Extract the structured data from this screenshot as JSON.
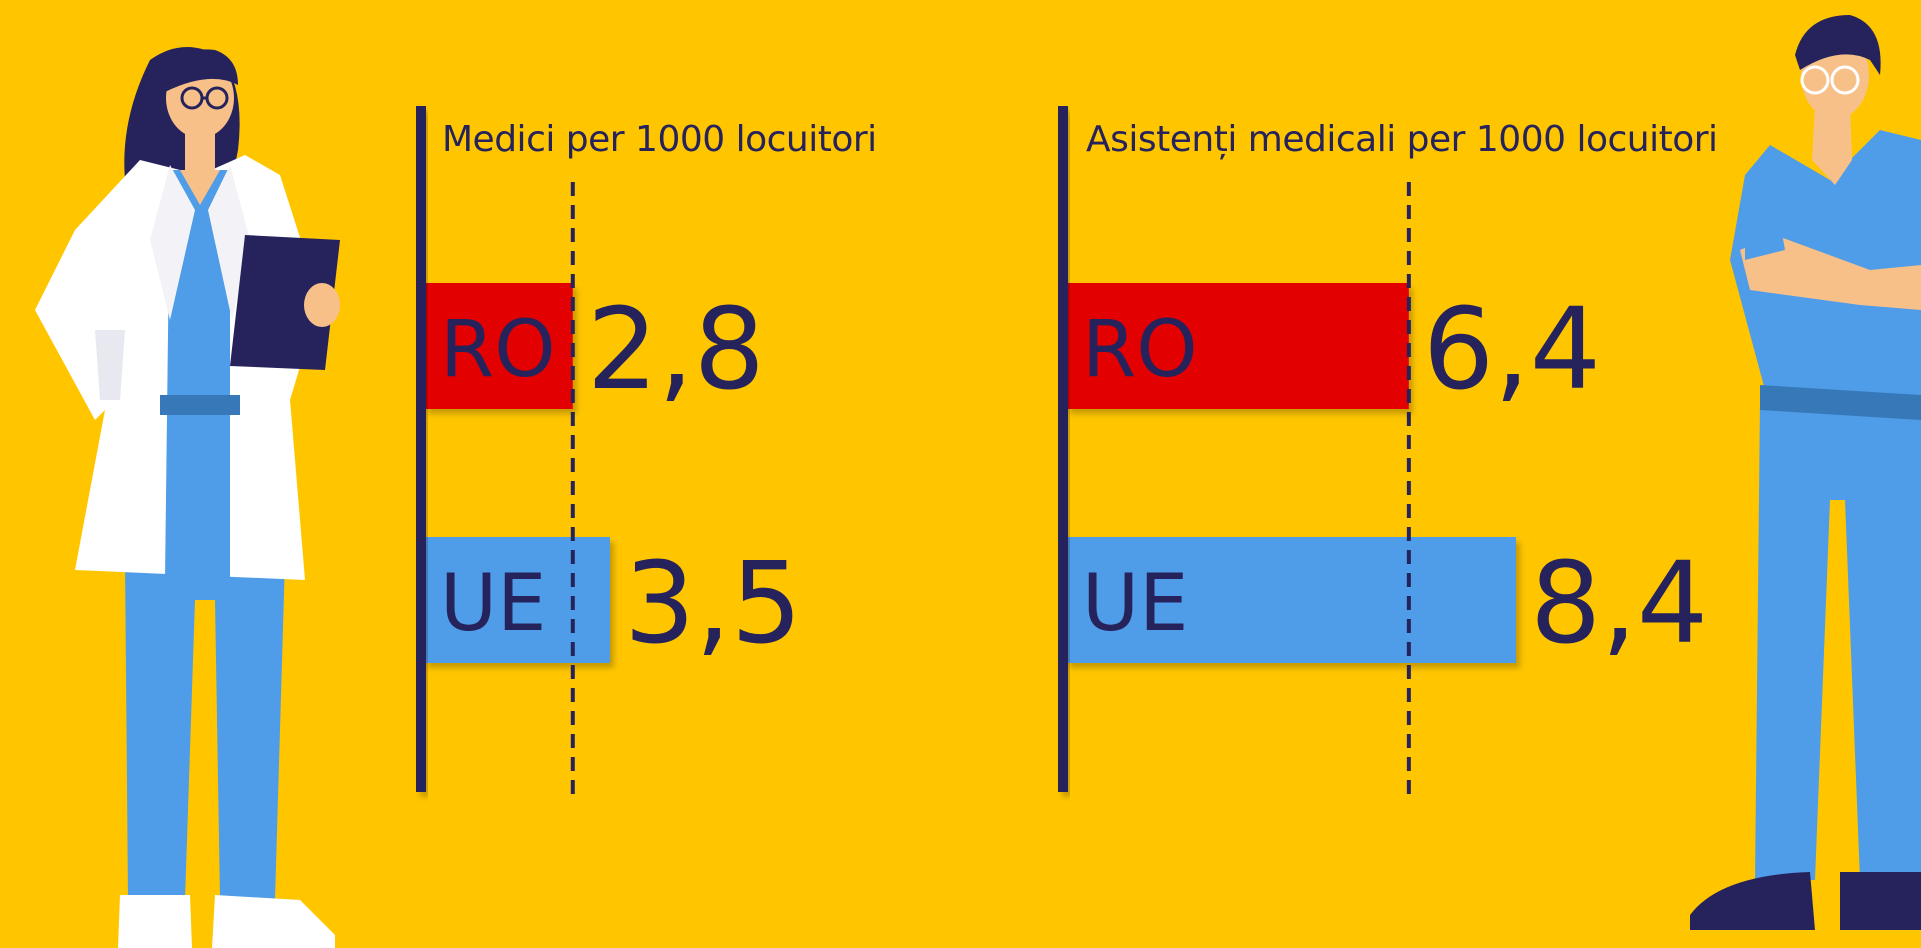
{
  "colors": {
    "background": "#FFC600",
    "ink": "#26235C",
    "ro_bar": "#E30000",
    "ue_bar": "#4F9DE8"
  },
  "illustrations": {
    "left": "doctor-woman-with-clipboard",
    "right": "nurse-man-arms-crossed"
  },
  "chart_data": [
    {
      "type": "bar",
      "orientation": "horizontal",
      "title": "Medici per 1000 locuitori",
      "categories": [
        "RO",
        "UE"
      ],
      "values": [
        2.8,
        3.5
      ],
      "value_labels": [
        "2,8",
        "3,5"
      ],
      "bar_colors": [
        "#E30000",
        "#4F9DE8"
      ],
      "reference_line": 2.8,
      "xlim": [
        0,
        3.5
      ]
    },
    {
      "type": "bar",
      "orientation": "horizontal",
      "title": "Asistenți medicali  per 1000 locuitori",
      "categories": [
        "RO",
        "UE"
      ],
      "values": [
        6.4,
        8.4
      ],
      "value_labels": [
        "6,4",
        "8,4"
      ],
      "bar_colors": [
        "#E30000",
        "#4F9DE8"
      ],
      "reference_line": 6.4,
      "xlim": [
        0,
        8.4
      ]
    }
  ]
}
